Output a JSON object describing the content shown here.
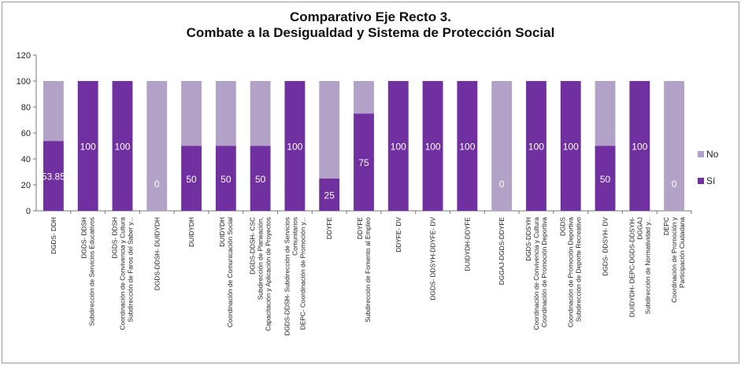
{
  "chart_data": {
    "type": "bar",
    "stacked": true,
    "title_lines": [
      "Comparativo Eje Recto 3.",
      "Combate a la Desigualdad y Sistema de Protección Social"
    ],
    "ylim": [
      0,
      120
    ],
    "yticks": [
      0,
      20,
      40,
      60,
      80,
      100,
      120
    ],
    "categories": [
      [
        "DGDS- DDH"
      ],
      [
        "DGDS- DDSH",
        "Subdirección de Servicios Educativos"
      ],
      [
        "DGDS- DDSH",
        "Coordinación de Convivencia y Cultura",
        "Subdirección de Faros del Saber y..."
      ],
      [
        "DGDS-DDSH- DUIDYDH"
      ],
      [
        "DUIDYDH"
      ],
      [
        "DUIDYDH",
        "Coordinación de Comunicación Social"
      ],
      [
        "DGDS-DDSH- CSC",
        "Subdirección de Planeación,",
        "Capacitación y Aplicación de Proyectos"
      ],
      [
        "DGDS-DDSH- Subdirección de Servicios",
        "Comunitarios",
        "DEPC- Coordinación de Promoción y..."
      ],
      [
        "DDYFE"
      ],
      [
        "DDYFE",
        "Subdirección de Fomento al Empleo"
      ],
      [
        "DDYFE- DV"
      ],
      [
        "DGDS- DDSYH-DDYFE- DV"
      ],
      [
        "DUIDYDH-DDYFE"
      ],
      [
        "DGGAJ-DGDS-DDYFE"
      ],
      [
        "DGDS-DDSYH",
        "Coordinación de Convivencia y Cultura",
        "Coordinación de Promoción Deportiva"
      ],
      [
        "DGDS",
        "Coordinación de Promoción Deportiva",
        "Subdirección de Deporte Recreativo"
      ],
      [
        "DGDS- DDSYH- DV"
      ],
      [
        "DUIDYDH- DEPC-DGDS-DDSYH-",
        "DGGAJ",
        "Subdirección de Normatividad y..."
      ],
      [
        "DEPC",
        "Coordinación de Promoción y",
        "Participación Ciudadana"
      ]
    ],
    "series": [
      {
        "name": "Sí",
        "color": "#7030a0",
        "values": [
          53.85,
          100,
          100,
          0,
          50,
          50,
          50,
          100,
          25,
          75,
          100,
          100,
          100,
          0,
          100,
          100,
          50,
          100,
          0
        ]
      },
      {
        "name": "No",
        "color": "#b3a2c7",
        "values": [
          46.15,
          0,
          0,
          100,
          50,
          50,
          50,
          0,
          75,
          25,
          0,
          0,
          0,
          100,
          0,
          0,
          50,
          0,
          100
        ]
      }
    ],
    "data_labels": [
      "53.85",
      "100",
      "100",
      "0",
      "50",
      "50",
      "50",
      "100",
      "25",
      "75",
      "100",
      "100",
      "100",
      "0",
      "100",
      "100",
      "50",
      "100",
      "0"
    ],
    "legend_position": "right",
    "grid": false
  }
}
